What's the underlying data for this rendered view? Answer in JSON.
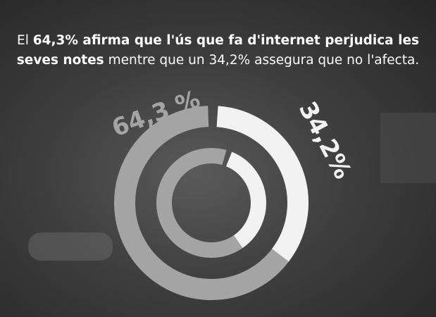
{
  "chart_data": {
    "type": "donut",
    "title_lines": [
      [
        "El ",
        "64,3% afirma que l'ús que fa d'internet perjudica les"
      ],
      [
        "seves notes",
        " mentre que un 34,2% assegura que no l'afecta."
      ]
    ],
    "title_bold": [
      [
        false,
        true
      ],
      [
        true,
        false
      ]
    ],
    "values": [
      64.3,
      34.2
    ],
    "value_labels": [
      "64,3 %",
      "34,2%"
    ],
    "colors": [
      "#a4a4a4",
      "#f2f2f2"
    ]
  }
}
